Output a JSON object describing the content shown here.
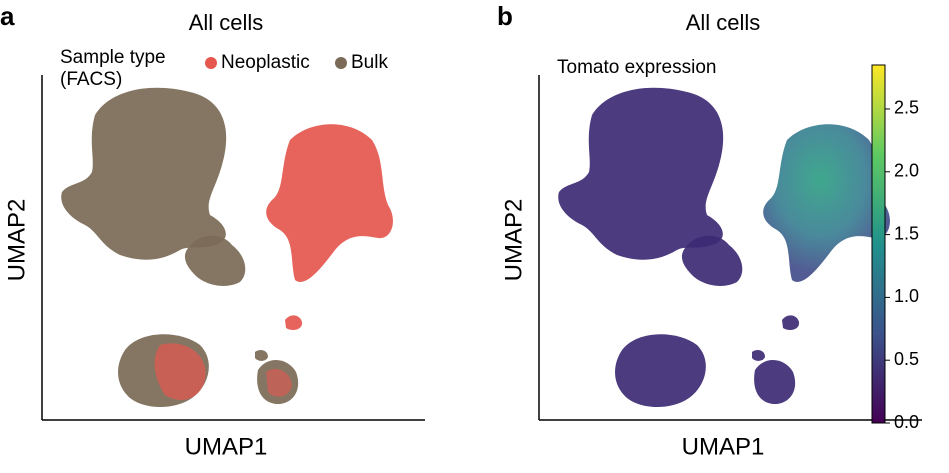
{
  "panels": [
    {
      "letter": "a",
      "title": "All cells",
      "xlabel": "UMAP1",
      "ylabel": "UMAP2",
      "legend": {
        "title": [
          "Sample type",
          "(FACS)"
        ],
        "entries": [
          {
            "name": "Neoplastic",
            "color": "#e5574f"
          },
          {
            "name": "Bulk",
            "color": "#7b6a57"
          }
        ]
      }
    },
    {
      "letter": "b",
      "title": "All cells",
      "xlabel": "UMAP1",
      "ylabel": "UMAP2",
      "colorbar": {
        "label": "Tomato expression",
        "lim": [
          0,
          2.85
        ],
        "ticks": [
          {
            "value": 0,
            "label": "0.0"
          },
          {
            "value": 0.5,
            "label": "0.5"
          },
          {
            "value": 1,
            "label": "1.0"
          },
          {
            "value": 1.5,
            "label": "1.5"
          },
          {
            "value": 2,
            "label": "2.0"
          },
          {
            "value": 2.5,
            "label": "2.5"
          }
        ]
      }
    }
  ]
}
